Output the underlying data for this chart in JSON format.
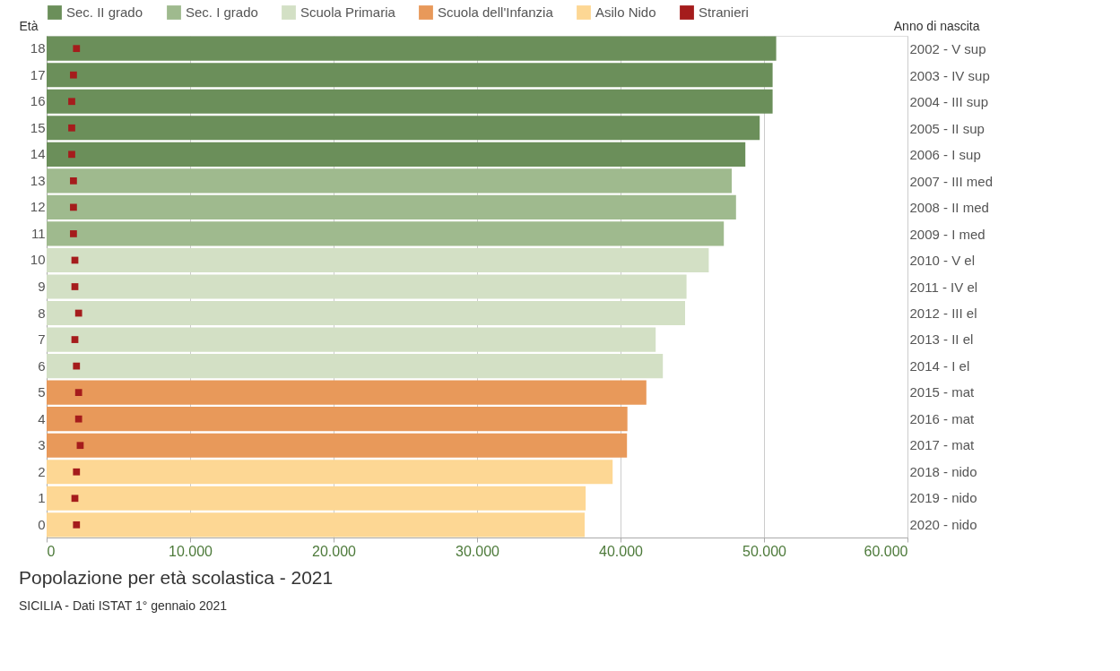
{
  "chart_data": {
    "type": "bar",
    "orientation": "horizontal",
    "title": "Popolazione per età scolastica - 2021",
    "annotations": [
      "SICILIA - Dati ISTAT 1° gennaio 2021"
    ],
    "ylabel": "Età",
    "y2label": "Anno di nascita",
    "categories": [
      "18",
      "17",
      "16",
      "15",
      "14",
      "13",
      "12",
      "11",
      "10",
      "9",
      "8",
      "7",
      "6",
      "5",
      "4",
      "3",
      "2",
      "1",
      "0"
    ],
    "y2_categories": [
      "2002 - V sup",
      "2003 - IV sup",
      "2004 - III sup",
      "2005 - II sup",
      "2006 - I sup",
      "2007 - III med",
      "2008 - II med",
      "2009 - I med",
      "2010 - V el",
      "2011 - IV el",
      "2012 - III el",
      "2013 - II el",
      "2014 - I el",
      "2015 - mat",
      "2016 - mat",
      "2017 - mat",
      "2018 - nido",
      "2019 - nido",
      "2020 - nido"
    ],
    "xlim": [
      0,
      60000
    ],
    "xticks": [
      0,
      {
        "value": 10000,
        "label": "10.000"
      },
      {
        "value": 20000,
        "label": "20.000"
      },
      {
        "value": 30000,
        "label": "30.000"
      },
      {
        "value": 40000,
        "label": "40.000"
      },
      {
        "value": 50000,
        "label": "50.000"
      },
      {
        "value": 60000,
        "label": "60.000"
      }
    ],
    "grid": "x",
    "legend": "top",
    "series": [
      {
        "name": "Sec. II grado",
        "color": "#6b8f5a",
        "values": [
          50850,
          50600,
          50600,
          49700,
          48700,
          null,
          null,
          null,
          null,
          null,
          null,
          null,
          null,
          null,
          null,
          null,
          null,
          null,
          null
        ]
      },
      {
        "name": "Sec. I grado",
        "color": "#9fba8e",
        "values": [
          null,
          null,
          null,
          null,
          null,
          47750,
          48050,
          47200,
          null,
          null,
          null,
          null,
          null,
          null,
          null,
          null,
          null,
          null,
          null
        ]
      },
      {
        "name": "Scuola Primaria",
        "color": "#d3e0c5",
        "values": [
          null,
          null,
          null,
          null,
          null,
          null,
          null,
          null,
          46150,
          44600,
          44500,
          42450,
          42950,
          null,
          null,
          null,
          null,
          null,
          null
        ]
      },
      {
        "name": "Scuola dell'Infanzia",
        "color": "#e8995a",
        "values": [
          null,
          null,
          null,
          null,
          null,
          null,
          null,
          null,
          null,
          null,
          null,
          null,
          null,
          41800,
          40480,
          40450,
          null,
          null,
          null
        ]
      },
      {
        "name": "Asilo Nido",
        "color": "#fdd794",
        "values": [
          null,
          null,
          null,
          null,
          null,
          null,
          null,
          null,
          null,
          null,
          null,
          null,
          null,
          null,
          null,
          null,
          39450,
          37570,
          37500
        ]
      },
      {
        "name": "Stranieri",
        "color": "#a51c1c",
        "type": "scatter",
        "marker": "square",
        "values": [
          2080,
          1870,
          1750,
          1750,
          1750,
          1870,
          1870,
          1870,
          1970,
          1970,
          2230,
          1970,
          2080,
          2230,
          2230,
          2340,
          2080,
          1970,
          2080
        ]
      }
    ]
  }
}
